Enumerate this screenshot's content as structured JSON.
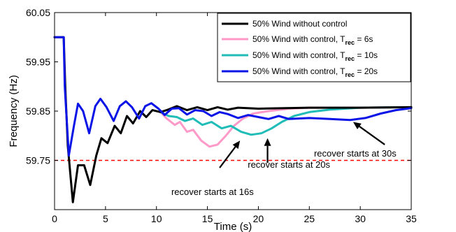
{
  "chart_data": {
    "type": "line",
    "xlabel": "Time (s)",
    "ylabel": "Frequency (Hz)",
    "xlim": [
      0,
      35
    ],
    "ylim": [
      59.65,
      60.05
    ],
    "x_ticks": [
      0,
      5,
      10,
      15,
      20,
      25,
      30,
      35
    ],
    "y_ticks": [
      59.75,
      59.85,
      59.95,
      60.05
    ],
    "x_tick_labels": [
      "0",
      "5",
      "10",
      "15",
      "20",
      "25",
      "30",
      "35"
    ],
    "y_tick_labels": [
      "59.75",
      "59.85",
      "59.95",
      "60.05"
    ],
    "grid": false,
    "legend_position": "top-right",
    "series": [
      {
        "name": "50% Wind without control",
        "name_main": "50% Wind without control",
        "name_sub": "",
        "name_tail": "",
        "color": "#000000",
        "points": [
          [
            0,
            60.0
          ],
          [
            0.9,
            60.0
          ],
          [
            1.05,
            59.9
          ],
          [
            1.3,
            59.78
          ],
          [
            1.8,
            59.665
          ],
          [
            2.3,
            59.74
          ],
          [
            2.9,
            59.74
          ],
          [
            3.5,
            59.7
          ],
          [
            4.1,
            59.76
          ],
          [
            4.6,
            59.795
          ],
          [
            5.2,
            59.785
          ],
          [
            5.9,
            59.82
          ],
          [
            6.5,
            59.805
          ],
          [
            7.1,
            59.84
          ],
          [
            7.7,
            59.825
          ],
          [
            8.4,
            59.85
          ],
          [
            9.0,
            59.838
          ],
          [
            9.6,
            59.852
          ],
          [
            10.4,
            59.848
          ],
          [
            11.0,
            59.852
          ],
          [
            12.0,
            59.86
          ],
          [
            13.0,
            59.852
          ],
          [
            14.0,
            59.858
          ],
          [
            15.0,
            59.852
          ],
          [
            16.0,
            59.858
          ],
          [
            17.0,
            59.853
          ],
          [
            18.0,
            59.857
          ],
          [
            20.0,
            59.855
          ],
          [
            25.0,
            59.857
          ],
          [
            30.0,
            59.857
          ],
          [
            35.0,
            59.858
          ]
        ]
      },
      {
        "name": "50% Wind with control, Trec = 6s",
        "name_main": "50% Wind with control, T",
        "name_sub": "rec",
        "name_tail": " = 6s",
        "color": "#ff99c8",
        "points": [
          [
            10.4,
            59.848
          ],
          [
            11.0,
            59.835
          ],
          [
            11.8,
            59.822
          ],
          [
            12.3,
            59.828
          ],
          [
            13.0,
            59.808
          ],
          [
            13.6,
            59.812
          ],
          [
            14.4,
            59.79
          ],
          [
            15.2,
            59.778
          ],
          [
            16.0,
            59.782
          ],
          [
            16.8,
            59.8
          ],
          [
            17.6,
            59.82
          ],
          [
            18.5,
            59.835
          ],
          [
            19.5,
            59.845
          ],
          [
            21.0,
            59.85
          ],
          [
            23.0,
            59.855
          ],
          [
            25.0,
            59.857
          ],
          [
            30.0,
            59.857
          ],
          [
            35.0,
            59.858
          ]
        ]
      },
      {
        "name": "50% Wind with control, Trec = 10s",
        "name_main": "50% Wind with control, T",
        "name_sub": "rec",
        "name_tail": " = 10s",
        "color": "#1fbcb8",
        "points": [
          [
            10.4,
            59.848
          ],
          [
            11.2,
            59.84
          ],
          [
            12.0,
            59.838
          ],
          [
            12.8,
            59.83
          ],
          [
            13.6,
            59.835
          ],
          [
            14.5,
            59.822
          ],
          [
            15.4,
            59.828
          ],
          [
            16.4,
            59.815
          ],
          [
            17.3,
            59.82
          ],
          [
            18.3,
            59.808
          ],
          [
            19.3,
            59.802
          ],
          [
            20.3,
            59.805
          ],
          [
            21.3,
            59.815
          ],
          [
            22.3,
            59.828
          ],
          [
            23.5,
            59.84
          ],
          [
            25.0,
            59.848
          ],
          [
            27.0,
            59.853
          ],
          [
            30.0,
            59.857
          ],
          [
            35.0,
            59.858
          ]
        ]
      },
      {
        "name": "50% Wind with control, Trec = 20s",
        "name_main": "50% Wind with control, T",
        "name_sub": "rec",
        "name_tail": " = 20s",
        "color": "#0a14e6",
        "points": [
          [
            0,
            60.0
          ],
          [
            0.9,
            60.0
          ],
          [
            1.0,
            59.9
          ],
          [
            1.4,
            59.76
          ],
          [
            1.9,
            59.82
          ],
          [
            2.3,
            59.865
          ],
          [
            2.8,
            59.85
          ],
          [
            3.4,
            59.805
          ],
          [
            4.0,
            59.86
          ],
          [
            4.5,
            59.875
          ],
          [
            5.1,
            59.858
          ],
          [
            5.8,
            59.83
          ],
          [
            6.4,
            59.86
          ],
          [
            7.0,
            59.87
          ],
          [
            7.6,
            59.858
          ],
          [
            8.3,
            59.835
          ],
          [
            8.9,
            59.86
          ],
          [
            9.5,
            59.866
          ],
          [
            10.2,
            59.855
          ],
          [
            10.8,
            59.842
          ],
          [
            11.5,
            59.855
          ],
          [
            12.2,
            59.856
          ],
          [
            13.0,
            59.843
          ],
          [
            13.8,
            59.852
          ],
          [
            14.6,
            59.85
          ],
          [
            15.4,
            59.84
          ],
          [
            16.2,
            59.848
          ],
          [
            17.0,
            59.844
          ],
          [
            18.0,
            59.836
          ],
          [
            19.0,
            59.842
          ],
          [
            20.0,
            59.838
          ],
          [
            21.0,
            59.834
          ],
          [
            22.0,
            59.84
          ],
          [
            23.0,
            59.834
          ],
          [
            25.0,
            59.836
          ],
          [
            27.0,
            59.834
          ],
          [
            29.0,
            59.832
          ],
          [
            30.5,
            59.836
          ],
          [
            32.0,
            59.845
          ],
          [
            33.5,
            59.852
          ],
          [
            35.0,
            59.856
          ]
        ]
      }
    ],
    "reference_line": {
      "y": 59.75,
      "color": "#ff0000",
      "style": "dashed"
    },
    "annotations": [
      {
        "text": "recover starts at 16s",
        "text_x": 15.5,
        "text_y": 59.68,
        "arrow_from": [
          16.2,
          59.735
        ],
        "arrow_to": [
          18.2,
          59.79
        ]
      },
      {
        "text": "recover starts at 20s",
        "text_x": 23.0,
        "text_y": 59.735,
        "arrow_from": [
          20.9,
          59.745
        ],
        "arrow_to": [
          20.9,
          59.795
        ]
      },
      {
        "text": "recover starts  at 30s",
        "text_x": 29.5,
        "text_y": 59.758,
        "arrow_from": [
          32.4,
          59.782
        ],
        "arrow_to": [
          29.3,
          59.828
        ]
      }
    ]
  }
}
